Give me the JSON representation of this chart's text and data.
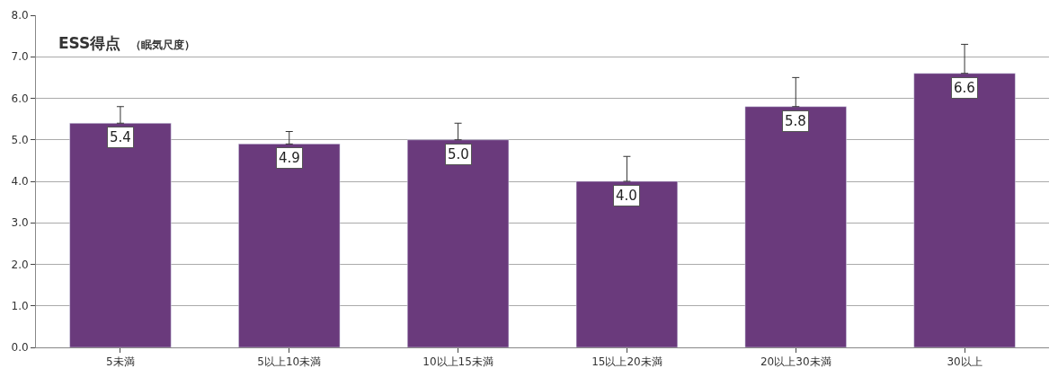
{
  "chart_data": {
    "type": "bar",
    "title": "ESS得点",
    "subtitle": "（眠気尺度）",
    "categories": [
      "5未満",
      "5以上10未満",
      "10以上15未満",
      "15以上20未満",
      "20以上30未満",
      "30以上"
    ],
    "values": [
      5.4,
      4.9,
      5.0,
      4.0,
      5.8,
      6.6
    ],
    "value_labels": [
      "5.4",
      "4.9",
      "5.0",
      "4.0",
      "5.8",
      "6.6"
    ],
    "errors": [
      [
        5.4,
        5.8
      ],
      [
        4.9,
        5.2
      ],
      [
        5.0,
        5.4
      ],
      [
        4.0,
        4.6
      ],
      [
        5.8,
        6.5
      ],
      [
        6.6,
        7.3
      ]
    ],
    "color": "#6a3a7c",
    "ylim": [
      0,
      8
    ],
    "yticks": [
      {
        "value": 0,
        "label": "0.0"
      },
      {
        "value": 1,
        "label": "1.0"
      },
      {
        "value": 2,
        "label": "2.0"
      },
      {
        "value": 3,
        "label": "3.0"
      },
      {
        "value": 4,
        "label": "4.0"
      },
      {
        "value": 5,
        "label": "5.0"
      },
      {
        "value": 6,
        "label": "6.0"
      },
      {
        "value": 7,
        "label": "7.0"
      },
      {
        "value": 8,
        "label": "8.0"
      }
    ],
    "grid": "y"
  }
}
